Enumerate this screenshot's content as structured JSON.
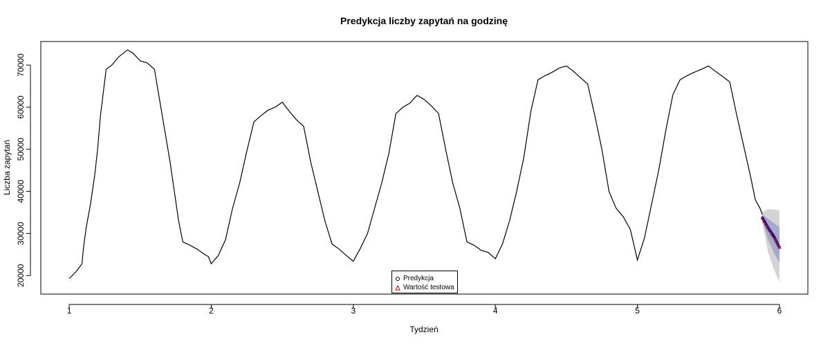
{
  "chart_data": {
    "type": "line",
    "title": "Predykcja liczby zapytań na godzinę",
    "xlabel": "Tydzień",
    "ylabel": "Liczba zapytań",
    "xlim": [
      0.8,
      6.2
    ],
    "ylim": [
      15600,
      75600
    ],
    "xticks": [
      1,
      2,
      3,
      4,
      5,
      6
    ],
    "yticks": [
      20000,
      30000,
      40000,
      50000,
      60000,
      70000
    ],
    "grid": false,
    "legend_position": "bottom-center",
    "series": [
      {
        "type": "line",
        "color": "#000000",
        "points": [
          [
            1.0,
            19300
          ],
          [
            1.05,
            21000
          ],
          [
            1.09,
            22800
          ],
          [
            1.1,
            26500
          ],
          [
            1.12,
            31500
          ],
          [
            1.15,
            37000
          ],
          [
            1.18,
            44000
          ],
          [
            1.2,
            50000
          ],
          [
            1.22,
            58000
          ],
          [
            1.24,
            63500
          ],
          [
            1.26,
            69000
          ],
          [
            1.3,
            70000
          ],
          [
            1.35,
            72000
          ],
          [
            1.38,
            72800
          ],
          [
            1.41,
            73600
          ],
          [
            1.45,
            72800
          ],
          [
            1.5,
            71000
          ],
          [
            1.55,
            70500
          ],
          [
            1.6,
            69000
          ],
          [
            1.63,
            63000
          ],
          [
            1.67,
            55000
          ],
          [
            1.71,
            47000
          ],
          [
            1.74,
            40000
          ],
          [
            1.77,
            33000
          ],
          [
            1.8,
            28000
          ],
          [
            1.85,
            27200
          ],
          [
            1.9,
            26300
          ],
          [
            1.95,
            25100
          ],
          [
            1.98,
            24500
          ],
          [
            2.0,
            22800
          ],
          [
            2.05,
            24800
          ],
          [
            2.1,
            28500
          ],
          [
            2.15,
            36000
          ],
          [
            2.2,
            42000
          ],
          [
            2.25,
            49500
          ],
          [
            2.3,
            56500
          ],
          [
            2.35,
            58000
          ],
          [
            2.4,
            59300
          ],
          [
            2.45,
            60000
          ],
          [
            2.5,
            61200
          ],
          [
            2.55,
            59000
          ],
          [
            2.6,
            57000
          ],
          [
            2.65,
            55500
          ],
          [
            2.7,
            47000
          ],
          [
            2.75,
            40000
          ],
          [
            2.8,
            33000
          ],
          [
            2.85,
            27500
          ],
          [
            2.9,
            26300
          ],
          [
            2.95,
            24800
          ],
          [
            3.0,
            23400
          ],
          [
            3.05,
            26500
          ],
          [
            3.1,
            30000
          ],
          [
            3.15,
            36000
          ],
          [
            3.2,
            42000
          ],
          [
            3.25,
            49000
          ],
          [
            3.3,
            58500
          ],
          [
            3.35,
            60000
          ],
          [
            3.4,
            61000
          ],
          [
            3.43,
            62200
          ],
          [
            3.45,
            62800
          ],
          [
            3.5,
            61800
          ],
          [
            3.55,
            60300
          ],
          [
            3.6,
            58500
          ],
          [
            3.65,
            50000
          ],
          [
            3.7,
            42000
          ],
          [
            3.75,
            36000
          ],
          [
            3.8,
            28000
          ],
          [
            3.85,
            27200
          ],
          [
            3.9,
            26000
          ],
          [
            3.95,
            25500
          ],
          [
            4.0,
            24000
          ],
          [
            4.05,
            27500
          ],
          [
            4.1,
            33000
          ],
          [
            4.15,
            40000
          ],
          [
            4.2,
            48000
          ],
          [
            4.25,
            59000
          ],
          [
            4.3,
            66500
          ],
          [
            4.35,
            67500
          ],
          [
            4.4,
            68300
          ],
          [
            4.45,
            69300
          ],
          [
            4.5,
            69800
          ],
          [
            4.55,
            68500
          ],
          [
            4.6,
            67000
          ],
          [
            4.65,
            65500
          ],
          [
            4.7,
            58000
          ],
          [
            4.75,
            50000
          ],
          [
            4.8,
            40000
          ],
          [
            4.85,
            36000
          ],
          [
            4.9,
            34000
          ],
          [
            4.95,
            31000
          ],
          [
            5.0,
            23700
          ],
          [
            5.05,
            29000
          ],
          [
            5.1,
            37000
          ],
          [
            5.15,
            45000
          ],
          [
            5.2,
            54500
          ],
          [
            5.25,
            63000
          ],
          [
            5.3,
            66500
          ],
          [
            5.35,
            67500
          ],
          [
            5.4,
            68300
          ],
          [
            5.45,
            69000
          ],
          [
            5.5,
            69800
          ],
          [
            5.55,
            68500
          ],
          [
            5.6,
            67300
          ],
          [
            5.65,
            66000
          ],
          [
            5.7,
            58000
          ],
          [
            5.75,
            50500
          ],
          [
            5.8,
            43000
          ],
          [
            5.83,
            38000
          ],
          [
            5.86,
            36200
          ],
          [
            5.88,
            34500
          ]
        ]
      },
      {
        "name": "Predykcja",
        "type": "points",
        "color": "#00008b",
        "x": [
          5.88,
          5.886,
          5.892,
          5.898,
          5.904,
          5.91,
          5.916,
          5.922,
          5.928,
          5.934,
          5.94,
          5.946,
          5.952,
          5.958,
          5.964,
          5.97,
          5.976,
          5.982,
          5.988,
          5.994,
          6.0
        ],
        "values": [
          33800,
          33500,
          33100,
          32800,
          32400,
          32000,
          31700,
          31300,
          31000,
          30700,
          30400,
          30100,
          29800,
          29500,
          29200,
          28800,
          28400,
          28000,
          27600,
          27200,
          26800
        ]
      },
      {
        "name": "Wartość testowa",
        "type": "points",
        "color": "#cc0000",
        "x": [
          5.88,
          5.886,
          5.892,
          5.898,
          5.904,
          5.91,
          5.916,
          5.922,
          5.928,
          5.934,
          5.94,
          5.946,
          5.952,
          5.958,
          5.964,
          5.97,
          5.976,
          5.982,
          5.988,
          5.994,
          6.0
        ],
        "values": [
          33700,
          33400,
          33000,
          32700,
          32300,
          32000,
          31600,
          31300,
          31000,
          30700,
          30400,
          30000,
          29700,
          29400,
          29100,
          28700,
          28300,
          27900,
          27500,
          27100,
          26700
        ]
      }
    ],
    "prediction_intervals": {
      "x": [
        5.88,
        5.92,
        5.96,
        6.0
      ],
      "lower_80": [
        33000,
        28500,
        25500,
        23000
      ],
      "upper_80": [
        34500,
        33500,
        32500,
        31500
      ],
      "lower_95": [
        32500,
        25500,
        21500,
        18500
      ],
      "upper_95": [
        35000,
        35800,
        35700,
        35500
      ],
      "color_80": "#a5a9cb",
      "color_95": "#d4d4d7"
    }
  }
}
